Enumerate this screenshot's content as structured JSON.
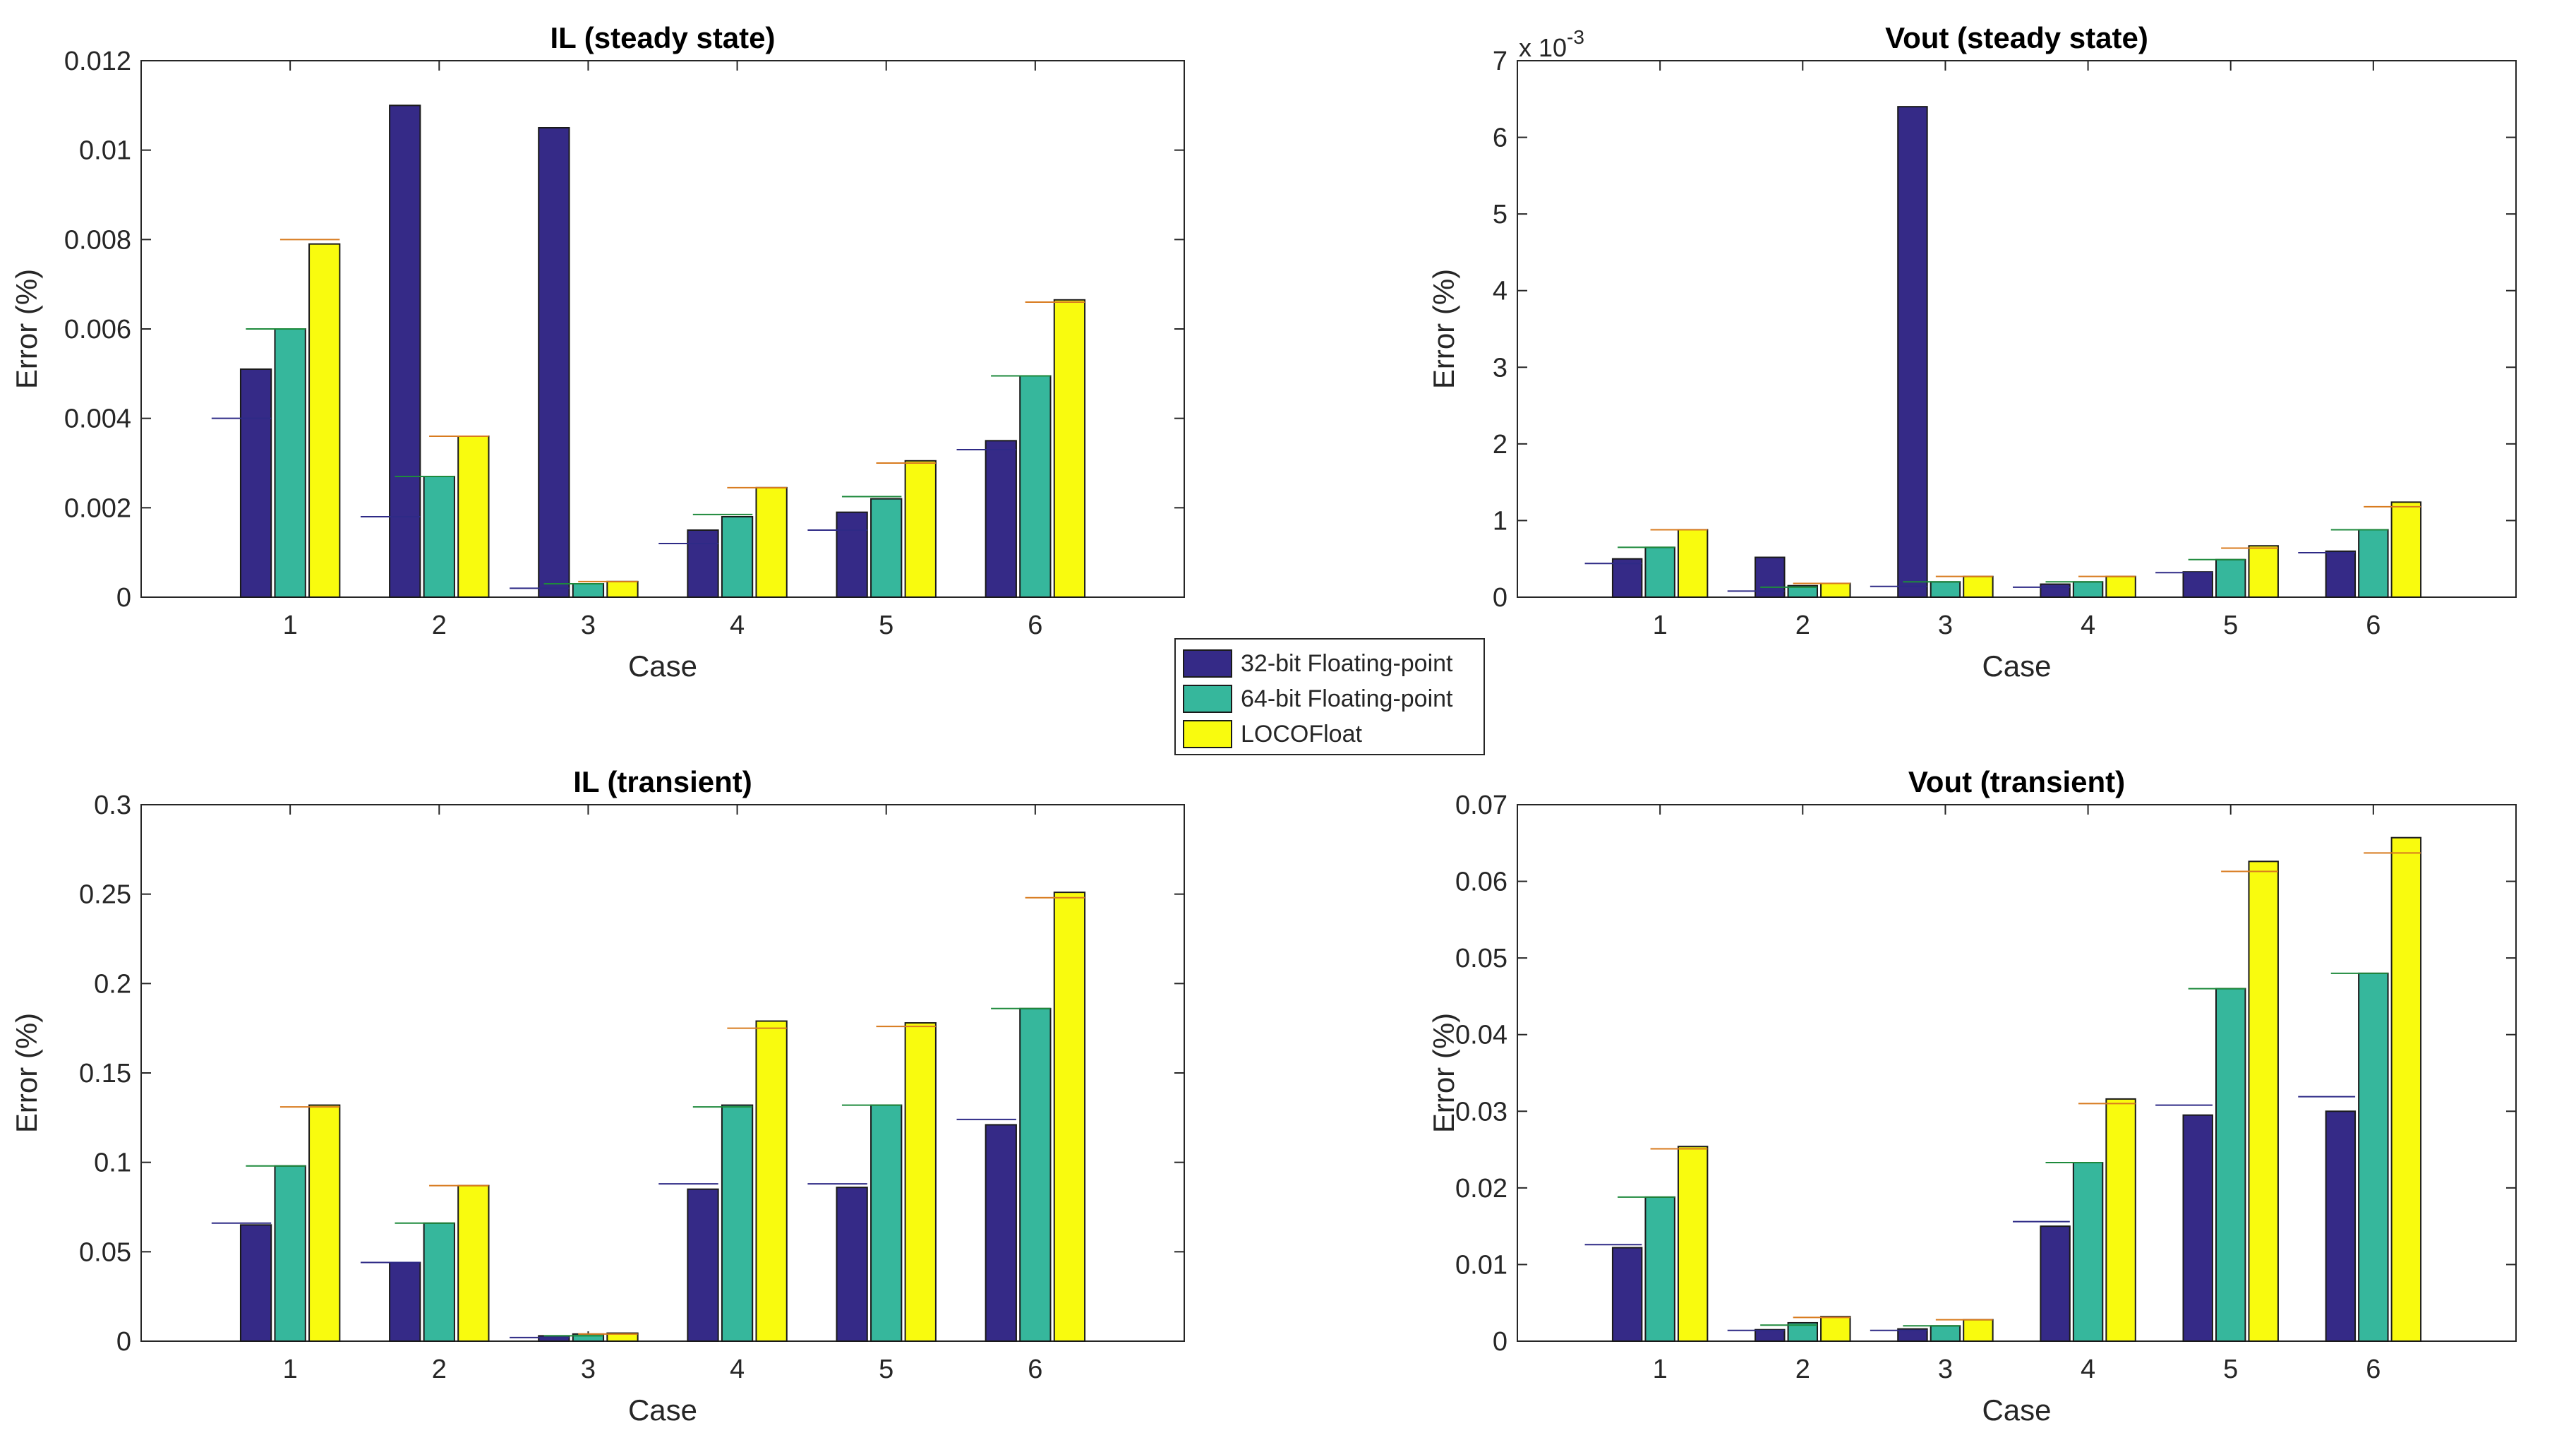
{
  "series_colors": [
    "#352a87",
    "#36b79c",
    "#f9fb0e"
  ],
  "ref_line_colors": [
    "#2e2a86",
    "#1e8a3c",
    "#d87b1f"
  ],
  "legend": {
    "items": [
      "32-bit Floating-point",
      "64-bit Floating-point",
      "LOCOFloat"
    ]
  },
  "chart_data": [
    {
      "type": "bar",
      "title": "IL (steady state)",
      "xlabel": "Case",
      "ylabel": "Error (%)",
      "categories": [
        "1",
        "2",
        "3",
        "4",
        "5",
        "6"
      ],
      "ylim": [
        0,
        0.012
      ],
      "yticks": [
        0,
        0.002,
        0.004,
        0.006,
        0.008,
        0.01,
        0.012
      ],
      "ytick_labels": [
        "0",
        "0.002",
        "0.004",
        "0.006",
        "0.008",
        "0.01",
        "0.012"
      ],
      "exponent_label": "",
      "series": [
        {
          "name": "32-bit Floating-point",
          "values": [
            0.0051,
            0.011,
            0.0105,
            0.0015,
            0.0019,
            0.0035
          ]
        },
        {
          "name": "64-bit Floating-point",
          "values": [
            0.006,
            0.0027,
            0.0003,
            0.0018,
            0.0022,
            0.00495
          ]
        },
        {
          "name": "LOCOFloat",
          "values": [
            0.0079,
            0.0036,
            0.00035,
            0.00245,
            0.00305,
            0.00665
          ]
        }
      ],
      "reference_lines": [
        [
          0.004,
          0.0018,
          0.0002,
          0.0012,
          0.0015,
          0.0033
        ],
        [
          0.006,
          0.0027,
          0.0003,
          0.00185,
          0.00225,
          0.00495
        ],
        [
          0.008,
          0.0036,
          0.00035,
          0.00245,
          0.003,
          0.0066
        ]
      ]
    },
    {
      "type": "bar",
      "title": "Vout (steady state)",
      "xlabel": "Case",
      "ylabel": "Error (%)",
      "categories": [
        "1",
        "2",
        "3",
        "4",
        "5",
        "6"
      ],
      "ylim": [
        0,
        7
      ],
      "yticks": [
        0,
        1,
        2,
        3,
        4,
        5,
        6,
        7
      ],
      "ytick_labels": [
        "0",
        "1",
        "2",
        "3",
        "4",
        "5",
        "6",
        "7"
      ],
      "exponent_label": "x 10",
      "exponent_power": "-3",
      "series": [
        {
          "name": "32-bit Floating-point",
          "values": [
            0.5,
            0.52,
            6.4,
            0.17,
            0.33,
            0.6
          ]
        },
        {
          "name": "64-bit Floating-point",
          "values": [
            0.65,
            0.15,
            0.2,
            0.2,
            0.49,
            0.88
          ]
        },
        {
          "name": "LOCOFloat",
          "values": [
            0.88,
            0.18,
            0.27,
            0.27,
            0.67,
            1.24
          ]
        }
      ],
      "reference_lines": [
        [
          0.44,
          0.08,
          0.14,
          0.13,
          0.32,
          0.58
        ],
        [
          0.65,
          0.13,
          0.2,
          0.2,
          0.49,
          0.88
        ],
        [
          0.88,
          0.18,
          0.27,
          0.27,
          0.64,
          1.18
        ]
      ]
    },
    {
      "type": "bar",
      "title": "IL (transient)",
      "xlabel": "Case",
      "ylabel": "Error (%)",
      "categories": [
        "1",
        "2",
        "3",
        "4",
        "5",
        "6"
      ],
      "ylim": [
        0,
        0.3
      ],
      "yticks": [
        0,
        0.05,
        0.1,
        0.15,
        0.2,
        0.25,
        0.3
      ],
      "ytick_labels": [
        "0",
        "0.05",
        "0.1",
        "0.15",
        "0.2",
        "0.25",
        "0.3"
      ],
      "exponent_label": "",
      "series": [
        {
          "name": "32-bit Floating-point",
          "values": [
            0.065,
            0.044,
            0.003,
            0.085,
            0.086,
            0.121
          ]
        },
        {
          "name": "64-bit Floating-point",
          "values": [
            0.098,
            0.066,
            0.004,
            0.132,
            0.132,
            0.186
          ]
        },
        {
          "name": "LOCOFloat",
          "values": [
            0.132,
            0.087,
            0.0045,
            0.179,
            0.178,
            0.251
          ]
        }
      ],
      "reference_lines": [
        [
          0.066,
          0.044,
          0.002,
          0.088,
          0.088,
          0.124
        ],
        [
          0.098,
          0.066,
          0.003,
          0.131,
          0.132,
          0.186
        ],
        [
          0.131,
          0.087,
          0.004,
          0.175,
          0.176,
          0.248
        ]
      ]
    },
    {
      "type": "bar",
      "title": "Vout (transient)",
      "xlabel": "Case",
      "ylabel": "Error (%)",
      "categories": [
        "1",
        "2",
        "3",
        "4",
        "5",
        "6"
      ],
      "ylim": [
        0,
        0.07
      ],
      "yticks": [
        0,
        0.01,
        0.02,
        0.03,
        0.04,
        0.05,
        0.06,
        0.07
      ],
      "ytick_labels": [
        "0",
        "0.01",
        "0.02",
        "0.03",
        "0.04",
        "0.05",
        "0.06",
        "0.07"
      ],
      "exponent_label": "",
      "series": [
        {
          "name": "32-bit Floating-point",
          "values": [
            0.0122,
            0.0015,
            0.0016,
            0.015,
            0.0295,
            0.03
          ]
        },
        {
          "name": "64-bit Floating-point",
          "values": [
            0.0188,
            0.0024,
            0.002,
            0.0233,
            0.046,
            0.048
          ]
        },
        {
          "name": "LOCOFloat",
          "values": [
            0.0254,
            0.0032,
            0.0028,
            0.0316,
            0.0626,
            0.0657
          ]
        }
      ],
      "reference_lines": [
        [
          0.0126,
          0.0014,
          0.0014,
          0.0156,
          0.0308,
          0.0319
        ],
        [
          0.0188,
          0.0021,
          0.002,
          0.0233,
          0.046,
          0.048
        ],
        [
          0.0251,
          0.0031,
          0.0028,
          0.031,
          0.0613,
          0.0637
        ]
      ]
    }
  ]
}
